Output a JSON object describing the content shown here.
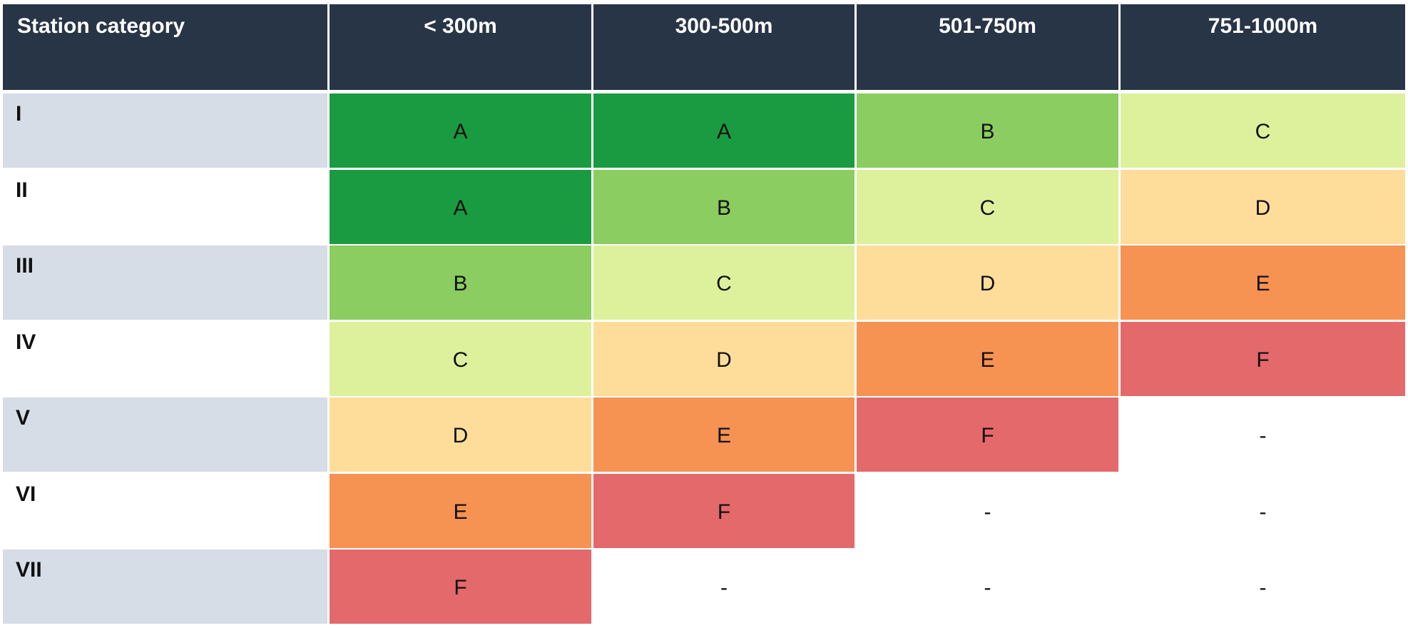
{
  "table": {
    "corner_header": "Station category",
    "columns": [
      "< 300m",
      "300-500m",
      "501-750m",
      "751-1000m"
    ],
    "rows": [
      {
        "label": "I",
        "grades": [
          "A",
          "A",
          "B",
          "C"
        ]
      },
      {
        "label": "II",
        "grades": [
          "A",
          "B",
          "C",
          "D"
        ]
      },
      {
        "label": "III",
        "grades": [
          "B",
          "C",
          "D",
          "E"
        ]
      },
      {
        "label": "IV",
        "grades": [
          "C",
          "D",
          "E",
          "F"
        ]
      },
      {
        "label": "V",
        "grades": [
          "D",
          "E",
          "F",
          "-"
        ]
      },
      {
        "label": "VI",
        "grades": [
          "E",
          "F",
          "-",
          "-"
        ]
      },
      {
        "label": "VII",
        "grades": [
          "F",
          "-",
          "-",
          "-"
        ]
      }
    ]
  },
  "grade_colors": {
    "A": "#1a9a41",
    "B": "#8bcd60",
    "C": "#ddf19c",
    "D": "#fedd9a",
    "E": "#f69252",
    "F": "#e4696b",
    "-": "#ffffff"
  },
  "colors": {
    "header_bg": "#283547",
    "header_text": "#ffffff",
    "row_label_shade": "#d6dde6"
  }
}
